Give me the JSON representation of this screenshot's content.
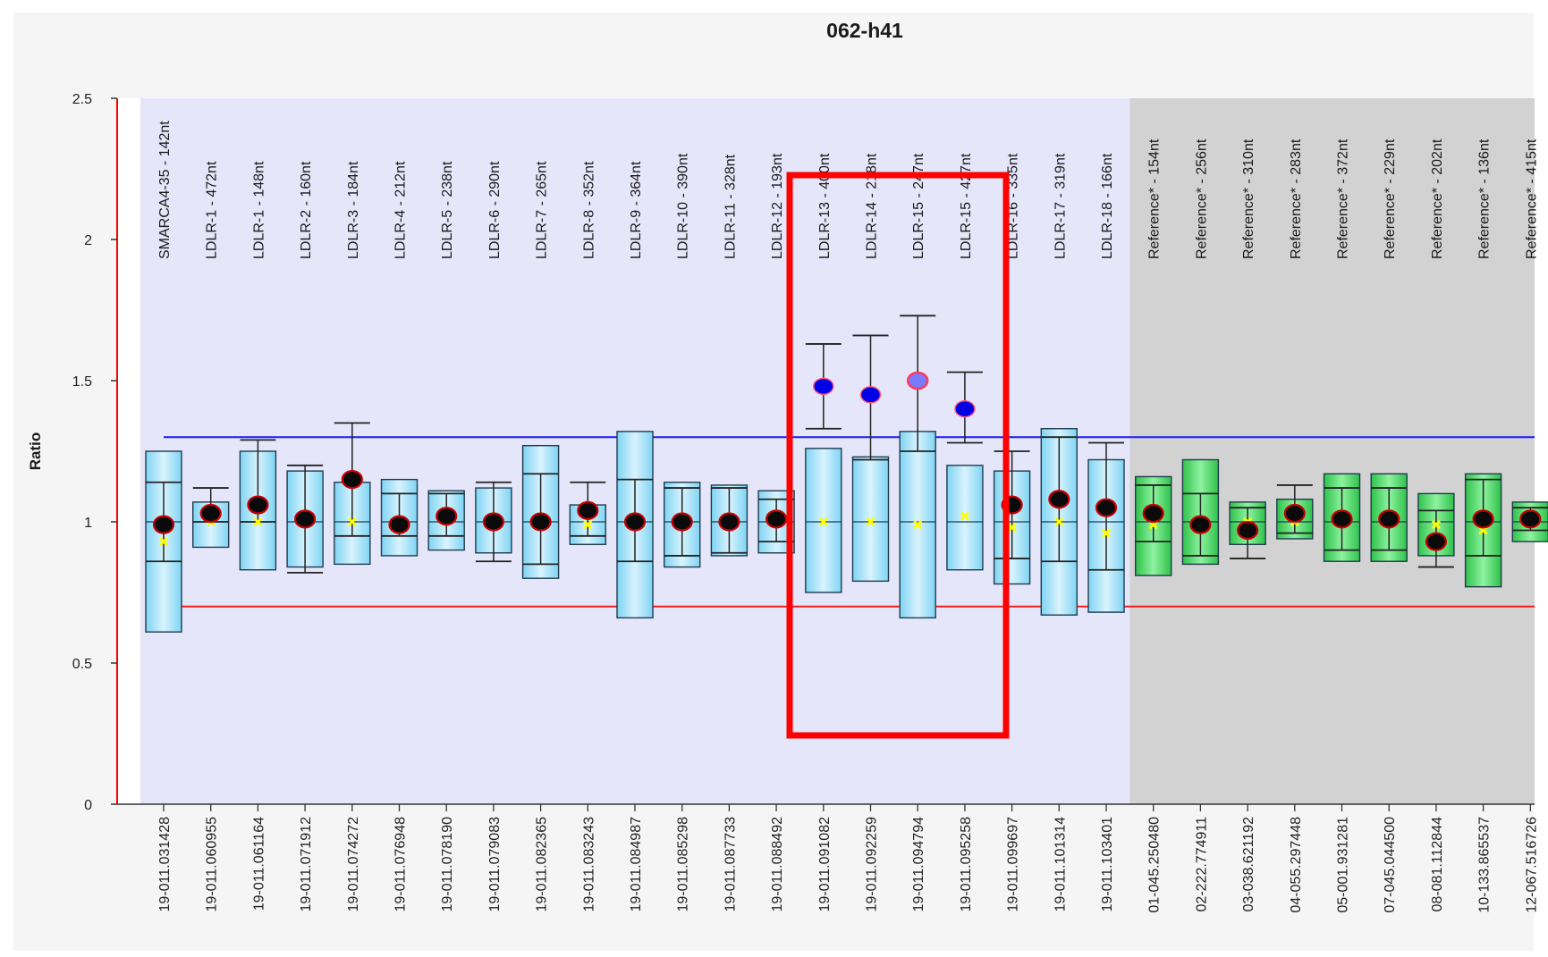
{
  "chart_data": {
    "type": "box",
    "title": "062-h41",
    "ylabel": "Ratio",
    "xlabel": "",
    "ylim": [
      0,
      2.5
    ],
    "yticks": [
      "0",
      "0.5",
      "1",
      "1.5",
      "2",
      "2.5"
    ],
    "grid": false,
    "thresholds": {
      "upper": 1.3,
      "lower": 0.7,
      "upper_color": "#1a1aff",
      "lower_color": "#ff1a1a"
    },
    "colors": {
      "target_region": "#e6e6fa",
      "reference_region": "#d2d2d2",
      "target_box": "#7fd4f4",
      "reference_box": "#2ec24a",
      "normal_point": "#c80000",
      "gain_point": "#0000e6",
      "highlight_frame": "#ff0000"
    },
    "highlight_note": "",
    "probes": [
      {
        "label": "SMARCA4-35 - 142nt",
        "position": "19-011.031428",
        "group": "target",
        "box": [
          0.61,
          1.25
        ],
        "whisker": [
          0.86,
          1.14
        ],
        "ratio": 0.99,
        "mean": 0.93,
        "status": "normal"
      },
      {
        "label": "LDLR-1 - 472nt",
        "position": "19-011.060955",
        "group": "target",
        "box": [
          0.91,
          1.07
        ],
        "whisker": [
          1.0,
          1.12
        ],
        "ratio": 1.03,
        "mean": 1.0,
        "status": "normal"
      },
      {
        "label": "LDLR-1 - 148nt",
        "position": "19-011.061164",
        "group": "target",
        "box": [
          0.83,
          1.25
        ],
        "whisker": [
          1.0,
          1.29
        ],
        "ratio": 1.06,
        "mean": 1.0,
        "status": "normal"
      },
      {
        "label": "LDLR-2 - 160nt",
        "position": "19-011.071912",
        "group": "target",
        "box": [
          0.84,
          1.18
        ],
        "whisker": [
          0.82,
          1.2
        ],
        "ratio": 1.01,
        "mean": 1.0,
        "status": "normal"
      },
      {
        "label": "LDLR-3 - 184nt",
        "position": "19-011.074272",
        "group": "target",
        "box": [
          0.85,
          1.14
        ],
        "whisker": [
          0.95,
          1.35
        ],
        "ratio": 1.15,
        "mean": 1.0,
        "status": "normal"
      },
      {
        "label": "LDLR-4 - 212nt",
        "position": "19-011.076948",
        "group": "target",
        "box": [
          0.88,
          1.15
        ],
        "whisker": [
          0.95,
          1.1
        ],
        "ratio": 0.99,
        "mean": 0.99,
        "status": "normal"
      },
      {
        "label": "LDLR-5 - 238nt",
        "position": "19-011.078190",
        "group": "target",
        "box": [
          0.9,
          1.11
        ],
        "whisker": [
          0.95,
          1.1
        ],
        "ratio": 1.02,
        "mean": 1.0,
        "status": "normal"
      },
      {
        "label": "LDLR-6 - 290nt",
        "position": "19-011.079083",
        "group": "target",
        "box": [
          0.89,
          1.12
        ],
        "whisker": [
          0.86,
          1.14
        ],
        "ratio": 1.0,
        "mean": 1.0,
        "status": "normal"
      },
      {
        "label": "LDLR-7 - 265nt",
        "position": "19-011.082365",
        "group": "target",
        "box": [
          0.8,
          1.27
        ],
        "whisker": [
          0.85,
          1.17
        ],
        "ratio": 1.0,
        "mean": 1.01,
        "status": "normal"
      },
      {
        "label": "LDLR-8 - 352nt",
        "position": "19-011.083243",
        "group": "target",
        "box": [
          0.92,
          1.06
        ],
        "whisker": [
          0.95,
          1.14
        ],
        "ratio": 1.04,
        "mean": 0.99,
        "status": "normal"
      },
      {
        "label": "LDLR-9 - 364nt",
        "position": "19-011.084987",
        "group": "target",
        "box": [
          0.66,
          1.32
        ],
        "whisker": [
          0.86,
          1.15
        ],
        "ratio": 1.0,
        "mean": 1.0,
        "status": "normal"
      },
      {
        "label": "LDLR-10 - 390nt",
        "position": "19-011.085298",
        "group": "target",
        "box": [
          0.84,
          1.14
        ],
        "whisker": [
          0.88,
          1.12
        ],
        "ratio": 1.0,
        "mean": 1.0,
        "status": "normal"
      },
      {
        "label": "LDLR-11 - 328nt",
        "position": "19-011.087733",
        "group": "target",
        "box": [
          0.88,
          1.13
        ],
        "whisker": [
          0.89,
          1.12
        ],
        "ratio": 1.0,
        "mean": 1.0,
        "status": "normal"
      },
      {
        "label": "LDLR-12 - 193nt",
        "position": "19-011.088492",
        "group": "target",
        "box": [
          0.89,
          1.11
        ],
        "whisker": [
          0.93,
          1.08
        ],
        "ratio": 1.01,
        "mean": 1.01,
        "status": "normal"
      },
      {
        "label": "LDLR-13 - 400nt",
        "position": "19-011.091082",
        "group": "target",
        "box": [
          0.75,
          1.26
        ],
        "whisker": [
          1.33,
          1.63
        ],
        "ratio": 1.48,
        "mean": 1.0,
        "status": "gain"
      },
      {
        "label": "LDLR-14 - 218nt",
        "position": "19-011.092259",
        "group": "target",
        "box": [
          0.79,
          1.23
        ],
        "whisker": [
          1.22,
          1.66
        ],
        "ratio": 1.45,
        "mean": 1.0,
        "status": "gain"
      },
      {
        "label": "LDLR-15 - 247nt",
        "position": "19-011.094794",
        "group": "target",
        "box": [
          0.66,
          1.32
        ],
        "whisker": [
          1.25,
          1.73
        ],
        "ratio": 1.5,
        "mean": 0.99,
        "status": "gain-outline"
      },
      {
        "label": "LDLR-15 - 427nt",
        "position": "19-011.095258",
        "group": "target",
        "box": [
          0.83,
          1.2
        ],
        "whisker": [
          1.28,
          1.53
        ],
        "ratio": 1.4,
        "mean": 1.02,
        "status": "gain"
      },
      {
        "label": "LDLR-16 - 335nt",
        "position": "19-011.099697",
        "group": "target",
        "box": [
          0.78,
          1.18
        ],
        "whisker": [
          0.87,
          1.25
        ],
        "ratio": 1.06,
        "mean": 0.98,
        "status": "normal"
      },
      {
        "label": "LDLR-17 - 319nt",
        "position": "19-011.101314",
        "group": "target",
        "box": [
          0.67,
          1.33
        ],
        "whisker": [
          0.86,
          1.3
        ],
        "ratio": 1.08,
        "mean": 1.0,
        "status": "normal"
      },
      {
        "label": "LDLR-18 - 166nt",
        "position": "19-011.103401",
        "group": "target",
        "box": [
          0.68,
          1.22
        ],
        "whisker": [
          0.83,
          1.28
        ],
        "ratio": 1.05,
        "mean": 0.96,
        "status": "normal"
      },
      {
        "label": "Reference* - 154nt",
        "position": "01-045.250480",
        "group": "reference",
        "box": [
          0.81,
          1.16
        ],
        "whisker": [
          0.93,
          1.13
        ],
        "ratio": 1.03,
        "mean": 0.99,
        "status": "normal"
      },
      {
        "label": "Reference* - 256nt",
        "position": "02-222.774911",
        "group": "reference",
        "box": [
          0.85,
          1.22
        ],
        "whisker": [
          0.88,
          1.1
        ],
        "ratio": 0.99,
        "mean": 1.0,
        "status": "normal"
      },
      {
        "label": "Reference* - 310nt",
        "position": "03-038.621192",
        "group": "reference",
        "box": [
          0.92,
          1.07
        ],
        "whisker": [
          0.87,
          1.05
        ],
        "ratio": 0.97,
        "mean": 1.0,
        "status": "normal"
      },
      {
        "label": "Reference* - 283nt",
        "position": "04-055.297448",
        "group": "reference",
        "box": [
          0.94,
          1.08
        ],
        "whisker": [
          0.96,
          1.13
        ],
        "ratio": 1.03,
        "mean": 1.0,
        "status": "normal"
      },
      {
        "label": "Reference* - 372nt",
        "position": "05-001.931281",
        "group": "reference",
        "box": [
          0.86,
          1.17
        ],
        "whisker": [
          0.9,
          1.12
        ],
        "ratio": 1.01,
        "mean": 1.0,
        "status": "normal"
      },
      {
        "label": "Reference* - 229nt",
        "position": "07-045.044500",
        "group": "reference",
        "box": [
          0.86,
          1.17
        ],
        "whisker": [
          0.9,
          1.12
        ],
        "ratio": 1.01,
        "mean": 1.0,
        "status": "normal"
      },
      {
        "label": "Reference* - 202nt",
        "position": "08-081.112844",
        "group": "reference",
        "box": [
          0.88,
          1.1
        ],
        "whisker": [
          0.84,
          1.04
        ],
        "ratio": 0.93,
        "mean": 0.99,
        "status": "normal"
      },
      {
        "label": "Reference* - 136nt",
        "position": "10-133.865537",
        "group": "reference",
        "box": [
          0.77,
          1.17
        ],
        "whisker": [
          0.88,
          1.15
        ],
        "ratio": 1.01,
        "mean": 0.97,
        "status": "normal"
      },
      {
        "label": "Reference* - 415nt",
        "position": "12-067.516726",
        "group": "reference",
        "box": [
          0.93,
          1.07
        ],
        "whisker": [
          0.97,
          1.05
        ],
        "ratio": 1.01,
        "mean": 1.0,
        "status": "normal"
      }
    ]
  }
}
